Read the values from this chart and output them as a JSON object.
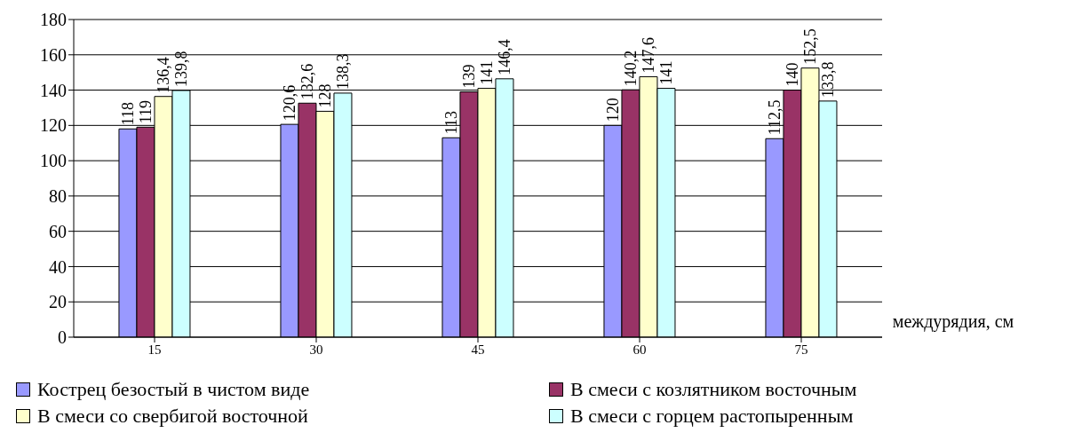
{
  "chart_data": {
    "type": "bar",
    "xlabel": "междурядия, см",
    "categories": [
      "15",
      "30",
      "45",
      "60",
      "75"
    ],
    "series": [
      {
        "name": "Кострец безостый в чистом виде",
        "color": "#9999ff",
        "values": [
          118,
          120.6,
          113,
          120,
          112.5
        ],
        "value_labels": [
          "118",
          "120,6",
          "113",
          "120",
          "112,5"
        ]
      },
      {
        "name": "В смеси с козлятником восточным",
        "color": "#993366",
        "values": [
          119,
          132.6,
          139,
          140.2,
          140
        ],
        "value_labels": [
          "119",
          "132,6",
          "139",
          "140,2",
          "140"
        ]
      },
      {
        "name": "В смеси со свербигой восточной",
        "color": "#ffffcc",
        "values": [
          136.4,
          128,
          141,
          147.6,
          152.5
        ],
        "value_labels": [
          "136,4",
          "128",
          "141",
          "147,6",
          "152,5"
        ]
      },
      {
        "name": "В смеси с горцем растопыренным",
        "color": "#ccffff",
        "values": [
          139.8,
          138.3,
          146.4,
          141,
          133.8
        ],
        "value_labels": [
          "139,8",
          "138,3",
          "146,4",
          "141",
          "133,8"
        ]
      }
    ],
    "ylim": [
      0,
      180
    ],
    "yticks": [
      0,
      20,
      40,
      60,
      80,
      100,
      120,
      140,
      160,
      180
    ],
    "grid": "y",
    "legend": "bottom"
  }
}
